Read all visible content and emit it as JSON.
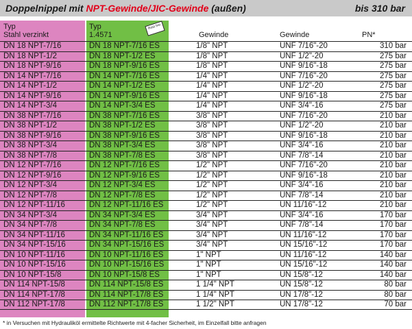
{
  "title": {
    "part1": "Doppelnippel mit ",
    "part2": "NPT-Gewinde/JIC-Gewinde",
    "part3": " (außen)",
    "right": "bis 310 bar"
  },
  "headers": {
    "col1_line1": "Typ",
    "col1_line2": "Stahl verzinkt",
    "col2_line1": "Typ",
    "col2_line2": "1.4571",
    "col3": "Gewinde",
    "col4": "Gewinde",
    "col5": "PN*"
  },
  "stamp": "Rost frei",
  "colors": {
    "pink": "#dd85c0",
    "green": "#71bf45",
    "red": "#e2001a"
  },
  "rows": [
    [
      "DN 18 NPT-7/16",
      "DN 18 NPT-7/16 ES",
      "1/8\" NPT",
      "UNF 7/16\"-20",
      "310 bar"
    ],
    [
      "DN 18 NPT-1/2",
      "DN 18 NPT-1/2 ES",
      "1/8\" NPT",
      "UNF 1/2\"-20",
      "275 bar"
    ],
    [
      "DN 18 NPT-9/16",
      "DN 18 NPT-9/16 ES",
      "1/8\" NPT",
      "UNF 9/16\"-18",
      "275 bar"
    ],
    [
      "DN 14 NPT-7/16",
      "DN 14 NPT-7/16 ES",
      "1/4\" NPT",
      "UNF 7/16\"-20",
      "275 bar"
    ],
    [
      "DN 14 NPT-1/2",
      "DN 14 NPT-1/2 ES",
      "1/4\" NPT",
      "UNF 1/2\"-20",
      "275 bar"
    ],
    [
      "DN 14 NPT-9/16",
      "DN 14 NPT-9/16 ES",
      "1/4\" NPT",
      "UNF 9/16\"-18",
      "275 bar"
    ],
    [
      "DN 14 NPT-3/4",
      "DN 14 NPT-3/4 ES",
      "1/4\" NPT",
      "UNF 3/4\"-16",
      "275 bar"
    ],
    [
      "DN 38 NPT-7/16",
      "DN 38 NPT-7/16 ES",
      "3/8\" NPT",
      "UNF 7/16\"-20",
      "210 bar"
    ],
    [
      "DN 38 NPT-1/2",
      "DN 38 NPT-1/2 ES",
      "3/8\" NPT",
      "UNF 1/2\"-20",
      "210 bar"
    ],
    [
      "DN 38 NPT-9/16",
      "DN 38 NPT-9/16 ES",
      "3/8\" NPT",
      "UNF 9/16\"-18",
      "210 bar"
    ],
    [
      "DN 38 NPT-3/4",
      "DN 38 NPT-3/4 ES",
      "3/8\" NPT",
      "UNF 3/4\"-16",
      "210 bar"
    ],
    [
      "DN 38 NPT-7/8",
      "DN 38 NPT-7/8 ES",
      "3/8\" NPT",
      "UNF 7/8\"-14",
      "210 bar"
    ],
    [
      "DN 12 NPT-7/16",
      "DN 12 NPT-7/16 ES",
      "1/2\" NPT",
      "UNF 7/16\"-20",
      "210 bar"
    ],
    [
      "DN 12 NPT-9/16",
      "DN 12 NPT-9/16 ES",
      "1/2\" NPT",
      "UNF 9/16\"-18",
      "210 bar"
    ],
    [
      "DN 12 NPT-3/4",
      "DN 12 NPT-3/4 ES",
      "1/2\" NPT",
      "UNF 3/4\"-16",
      "210 bar"
    ],
    [
      "DN 12 NPT-7/8",
      "DN 12 NPT-7/8 ES",
      "1/2\" NPT",
      "UNF 7/8\"-14",
      "210 bar"
    ],
    [
      "DN 12 NPT-11/16",
      "DN 12 NPT-11/16 ES",
      "1/2\" NPT",
      "UN 11/16\"-12",
      "210 bar"
    ],
    [
      "DN 34 NPT-3/4",
      "DN 34 NPT-3/4 ES",
      "3/4\" NPT",
      "UNF 3/4\"-16",
      "170 bar"
    ],
    [
      "DN 34 NPT-7/8",
      "DN 34 NPT-7/8 ES",
      "3/4\" NPT",
      "UNF 7/8\"-14",
      "170 bar"
    ],
    [
      "DN 34 NPT-11/16",
      "DN 34 NPT-11/16 ES",
      "3/4\" NPT",
      "UN 11/16\"-12",
      "170 bar"
    ],
    [
      "DN 34 NPT-15/16",
      "DN 34 NPT-15/16 ES",
      "3/4\" NPT",
      "UN 15/16\"-12",
      "170 bar"
    ],
    [
      "DN 10 NPT-11/16",
      "DN 10 NPT-11/16 ES",
      "1\" NPT",
      "UN 11/16\"-12",
      "140 bar"
    ],
    [
      "DN 10 NPT-15/16",
      "DN 10 NPT-15/16 ES",
      "1\" NPT",
      "UN 15/16\"-12",
      "140 bar"
    ],
    [
      "DN 10 NPT-15/8",
      "DN 10 NPT-15/8 ES",
      "1\" NPT",
      "UN 15/8\"-12",
      "140 bar"
    ],
    [
      "DN 114 NPT-15/8",
      "DN 114 NPT-15/8 ES",
      "1 1/4\" NPT",
      "UN 15/8\"-12",
      "80 bar"
    ],
    [
      "DN 114 NPT-17/8",
      "DN 114 NPT-17/8 ES",
      "1 1/4\" NPT",
      "UN 17/8\"-12",
      "80 bar"
    ],
    [
      "DN 112 NPT-17/8",
      "DN 112 NPT-17/8 ES",
      "1 1/2\" NPT",
      "UN 17/8\"-12",
      "70 bar"
    ]
  ],
  "footnote": "* in Versuchen mit Hydrauliköl ermittelte Richtwerte mit 4-facher Sicherheit, im Einzelfall bitte anfragen"
}
